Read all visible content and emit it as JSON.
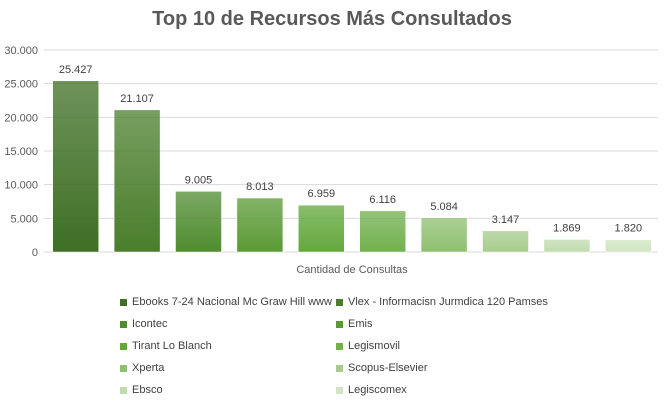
{
  "chart_data": {
    "type": "bar",
    "title": "Top 10 de Recursos Más Consultados",
    "xlabel": "Cantidad de Consultas",
    "ylabel": "",
    "ylim": [
      0,
      30000
    ],
    "yticks": [
      "0",
      "5.000",
      "10.000",
      "15.000",
      "20.000",
      "25.000",
      "30.000"
    ],
    "grid": true,
    "legend_position": "bottom",
    "series": [
      {
        "name": "Ebooks 7-24 Nacional Mc Graw Hill www",
        "value": 25427,
        "label": "25.427",
        "color": "#3e6f24"
      },
      {
        "name": "Vlex - Informacisn Jurmdica 120 Pamses",
        "value": 21107,
        "label": "21.107",
        "color": "#4a7e2b"
      },
      {
        "name": "Icontec",
        "value": 9005,
        "label": "9.005",
        "color": "#4f8c2f"
      },
      {
        "name": "Emis",
        "value": 8013,
        "label": "8.013",
        "color": "#5a9a35"
      },
      {
        "name": "Tirant Lo Blanch",
        "value": 6959,
        "label": "6.959",
        "color": "#63a83c"
      },
      {
        "name": "Legismovil",
        "value": 6116,
        "label": "6.116",
        "color": "#72b04e"
      },
      {
        "name": "Xperta",
        "value": 5084,
        "label": "5.084",
        "color": "#8fc070"
      },
      {
        "name": "Scopus-Elsevier",
        "value": 3147,
        "label": "3.147",
        "color": "#a6cd8d"
      },
      {
        "name": "Ebsco",
        "value": 1869,
        "label": "1.869",
        "color": "#bfdcae"
      },
      {
        "name": "Legiscomex",
        "value": 1820,
        "label": "1.820",
        "color": "#d0e5c2"
      }
    ]
  }
}
